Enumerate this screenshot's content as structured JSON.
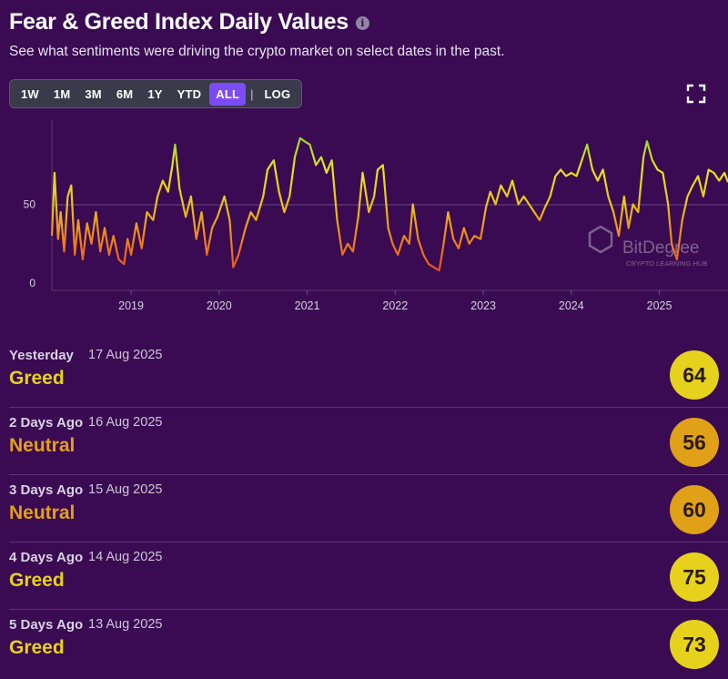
{
  "header": {
    "title": "Fear & Greed Index Daily Values",
    "info_icon": "info-icon",
    "subtitle": "See what sentiments were driving the crypto market on select dates in the past."
  },
  "range_buttons": [
    "1W",
    "1M",
    "3M",
    "6M",
    "1Y",
    "YTD",
    "ALL"
  ],
  "range_selected": "ALL",
  "range_separator": "|",
  "log_label": "LOG",
  "watermark": {
    "brand": "BitDegree",
    "tagline": "CRYPTO LEARNING HUB"
  },
  "colors": {
    "background": "#3a0a52",
    "active_button": "#7b4cf5",
    "greed": "#e6d21c",
    "neutral": "#e0a018",
    "extreme_greed": "#6ec93c",
    "fear": "#ec7a1c",
    "extreme_fear": "#d8321e"
  },
  "chart_data": {
    "type": "line",
    "title": "Fear & Greed Index Daily Values",
    "xlabel": "",
    "ylabel": "",
    "y_ticks": [
      0,
      50
    ],
    "ylim": [
      0,
      100
    ],
    "x_ticks": [
      "2019",
      "2020",
      "2021",
      "2022",
      "2023",
      "2024",
      "2025"
    ],
    "xlim": [
      2018.1,
      2025.78
    ],
    "grid": "horizontal line at 50",
    "series": [
      {
        "name": "Fear & Greed Index",
        "points": [
          [
            2018.1,
            30
          ],
          [
            2018.13,
            70
          ],
          [
            2018.17,
            28
          ],
          [
            2018.2,
            45
          ],
          [
            2018.24,
            20
          ],
          [
            2018.28,
            55
          ],
          [
            2018.32,
            62
          ],
          [
            2018.36,
            18
          ],
          [
            2018.4,
            40
          ],
          [
            2018.45,
            15
          ],
          [
            2018.5,
            38
          ],
          [
            2018.55,
            25
          ],
          [
            2018.6,
            45
          ],
          [
            2018.65,
            20
          ],
          [
            2018.7,
            35
          ],
          [
            2018.75,
            18
          ],
          [
            2018.8,
            30
          ],
          [
            2018.86,
            15
          ],
          [
            2018.92,
            12
          ],
          [
            2018.96,
            28
          ],
          [
            2019.0,
            18
          ],
          [
            2019.06,
            38
          ],
          [
            2019.12,
            22
          ],
          [
            2019.18,
            45
          ],
          [
            2019.25,
            40
          ],
          [
            2019.3,
            55
          ],
          [
            2019.36,
            65
          ],
          [
            2019.42,
            58
          ],
          [
            2019.47,
            75
          ],
          [
            2019.5,
            88
          ],
          [
            2019.55,
            60
          ],
          [
            2019.62,
            42
          ],
          [
            2019.68,
            55
          ],
          [
            2019.74,
            28
          ],
          [
            2019.8,
            45
          ],
          [
            2019.86,
            18
          ],
          [
            2019.92,
            35
          ],
          [
            2019.98,
            42
          ],
          [
            2020.06,
            55
          ],
          [
            2020.12,
            40
          ],
          [
            2020.16,
            10
          ],
          [
            2020.22,
            18
          ],
          [
            2020.3,
            35
          ],
          [
            2020.36,
            45
          ],
          [
            2020.42,
            40
          ],
          [
            2020.5,
            55
          ],
          [
            2020.55,
            72
          ],
          [
            2020.62,
            78
          ],
          [
            2020.68,
            58
          ],
          [
            2020.74,
            45
          ],
          [
            2020.8,
            55
          ],
          [
            2020.86,
            80
          ],
          [
            2020.92,
            92
          ],
          [
            2020.97,
            90
          ],
          [
            2021.03,
            88
          ],
          [
            2021.1,
            75
          ],
          [
            2021.16,
            80
          ],
          [
            2021.22,
            70
          ],
          [
            2021.28,
            78
          ],
          [
            2021.34,
            40
          ],
          [
            2021.4,
            18
          ],
          [
            2021.46,
            25
          ],
          [
            2021.52,
            20
          ],
          [
            2021.58,
            42
          ],
          [
            2021.63,
            70
          ],
          [
            2021.7,
            45
          ],
          [
            2021.76,
            55
          ],
          [
            2021.8,
            72
          ],
          [
            2021.86,
            75
          ],
          [
            2021.92,
            35
          ],
          [
            2021.97,
            25
          ],
          [
            2022.03,
            18
          ],
          [
            2022.1,
            30
          ],
          [
            2022.16,
            25
          ],
          [
            2022.2,
            50
          ],
          [
            2022.26,
            28
          ],
          [
            2022.32,
            18
          ],
          [
            2022.38,
            12
          ],
          [
            2022.44,
            10
          ],
          [
            2022.5,
            8
          ],
          [
            2022.55,
            25
          ],
          [
            2022.6,
            45
          ],
          [
            2022.66,
            28
          ],
          [
            2022.72,
            22
          ],
          [
            2022.78,
            35
          ],
          [
            2022.84,
            25
          ],
          [
            2022.9,
            30
          ],
          [
            2022.97,
            28
          ],
          [
            2023.03,
            48
          ],
          [
            2023.08,
            58
          ],
          [
            2023.14,
            50
          ],
          [
            2023.2,
            62
          ],
          [
            2023.27,
            55
          ],
          [
            2023.33,
            65
          ],
          [
            2023.4,
            50
          ],
          [
            2023.46,
            55
          ],
          [
            2023.52,
            50
          ],
          [
            2023.58,
            45
          ],
          [
            2023.64,
            40
          ],
          [
            2023.7,
            48
          ],
          [
            2023.76,
            55
          ],
          [
            2023.82,
            68
          ],
          [
            2023.88,
            72
          ],
          [
            2023.94,
            68
          ],
          [
            2024.0,
            70
          ],
          [
            2024.06,
            68
          ],
          [
            2024.12,
            78
          ],
          [
            2024.18,
            88
          ],
          [
            2024.24,
            72
          ],
          [
            2024.3,
            65
          ],
          [
            2024.36,
            72
          ],
          [
            2024.42,
            55
          ],
          [
            2024.48,
            45
          ],
          [
            2024.54,
            30
          ],
          [
            2024.6,
            55
          ],
          [
            2024.65,
            35
          ],
          [
            2024.7,
            50
          ],
          [
            2024.76,
            45
          ],
          [
            2024.82,
            80
          ],
          [
            2024.86,
            90
          ],
          [
            2024.92,
            78
          ],
          [
            2024.98,
            72
          ],
          [
            2025.04,
            70
          ],
          [
            2025.1,
            50
          ],
          [
            2025.14,
            25
          ],
          [
            2025.2,
            15
          ],
          [
            2025.26,
            40
          ],
          [
            2025.32,
            55
          ],
          [
            2025.38,
            62
          ],
          [
            2025.44,
            68
          ],
          [
            2025.5,
            55
          ],
          [
            2025.56,
            72
          ],
          [
            2025.62,
            70
          ],
          [
            2025.68,
            65
          ],
          [
            2025.74,
            70
          ],
          [
            2025.78,
            64
          ]
        ]
      }
    ]
  },
  "history": [
    {
      "when": "Yesterday",
      "date": "17 Aug 2025",
      "classification": "Greed",
      "value": 64,
      "color": "#e6d21c"
    },
    {
      "when": "2 Days Ago",
      "date": "16 Aug 2025",
      "classification": "Neutral",
      "value": 56,
      "color": "#e0a018"
    },
    {
      "when": "3 Days Ago",
      "date": "15 Aug 2025",
      "classification": "Neutral",
      "value": 60,
      "color": "#e0a018"
    },
    {
      "when": "4 Days Ago",
      "date": "14 Aug 2025",
      "classification": "Greed",
      "value": 75,
      "color": "#e6d21c"
    },
    {
      "when": "5 Days Ago",
      "date": "13 Aug 2025",
      "classification": "Greed",
      "value": 73,
      "color": "#e6d21c"
    }
  ]
}
